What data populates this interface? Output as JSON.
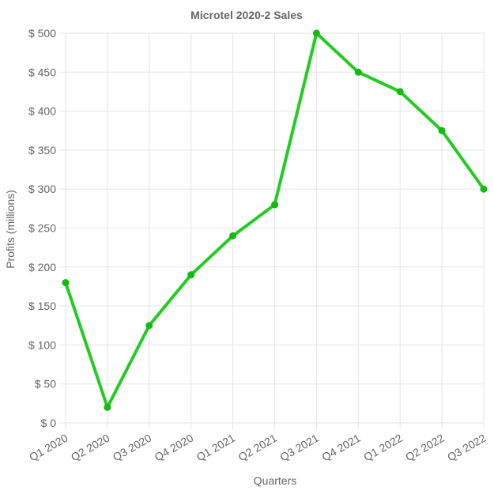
{
  "chart_data": {
    "type": "line",
    "title": "Microtel 2020-2 Sales",
    "xlabel": "Quarters",
    "ylabel": "Profits (millions)",
    "categories": [
      "Q1 2020",
      "Q2 2020",
      "Q3 2020",
      "Q4 2020",
      "Q1 2021",
      "Q2 2021",
      "Q3 2021",
      "Q4 2021",
      "Q1 2022",
      "Q2 2022",
      "Q3 2022"
    ],
    "series": [
      {
        "values": [
          180,
          20,
          125,
          190,
          240,
          280,
          500,
          450,
          425,
          375,
          300
        ]
      }
    ],
    "ylim": [
      0,
      500
    ],
    "y_ticks": [
      0,
      50,
      100,
      150,
      200,
      250,
      300,
      350,
      400,
      450,
      500
    ],
    "y_tick_labels": [
      "$ 0",
      "$ 50",
      "$ 100",
      "$ 150",
      "$ 200",
      "$ 250",
      "$ 300",
      "$ 350",
      "$ 400",
      "$ 450",
      "$ 500"
    ],
    "grid": true,
    "legend": "none",
    "line_color": "#22cc22",
    "point_color": "#11bb11"
  }
}
